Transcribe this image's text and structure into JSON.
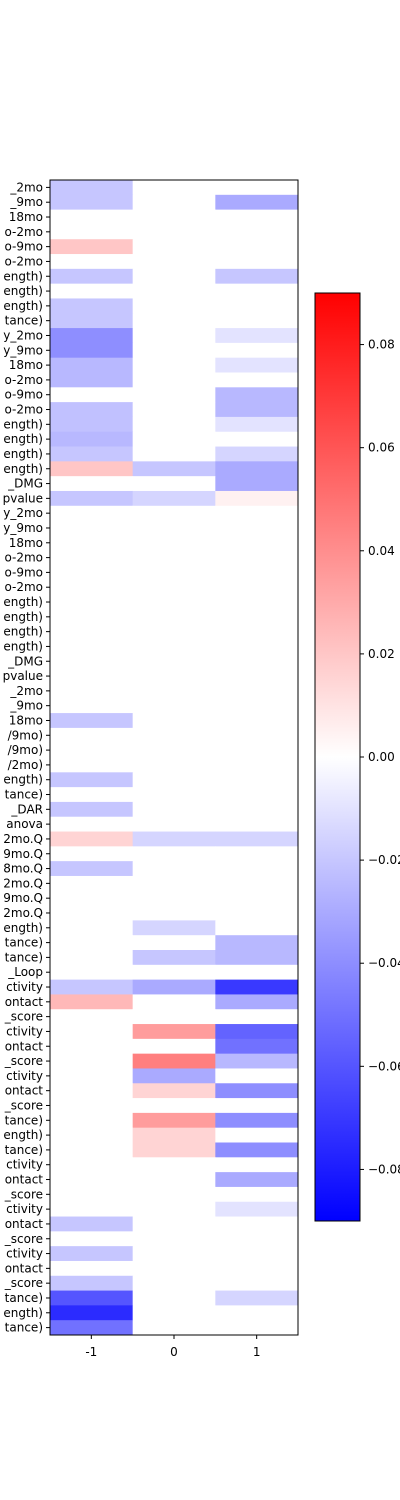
{
  "chart_data": {
    "type": "heatmap",
    "title": "",
    "xlabel": "",
    "ylabel": "",
    "x_categories": [
      "-1",
      "0",
      "1"
    ],
    "y_categories": [
      "_2mo",
      "_9mo",
      "18mo",
      "o-2mo",
      "o-9mo",
      "o-2mo",
      "ength)",
      "ength)",
      "ength)",
      "tance)",
      "y_2mo",
      "y_9mo",
      "18mo",
      "o-2mo",
      "o-9mo",
      "o-2mo",
      "ength)",
      "ength)",
      "ength)",
      "ength)",
      "_DMG",
      "pvalue",
      "y_2mo",
      "y_9mo",
      "18mo",
      "o-2mo",
      "o-9mo",
      "o-2mo",
      "ength)",
      "ength)",
      "ength)",
      "ength)",
      "_DMG",
      "pvalue",
      "_2mo",
      "_9mo",
      "18mo",
      "/9mo)",
      "/9mo)",
      "/2mo)",
      "ength)",
      "tance)",
      "_DAR",
      "anova",
      "2mo.Q",
      "9mo.Q",
      "8mo.Q",
      "2mo.Q",
      "9mo.Q",
      "2mo.Q",
      "ength)",
      "tance)",
      "tance)",
      "_Loop",
      "ctivity",
      "ontact",
      "_score",
      "ctivity",
      "ontact",
      "_score",
      "ctivity",
      "ontact",
      "_score",
      "tance)",
      "ength)",
      "tance)",
      "ctivity",
      "ontact",
      "_score",
      "ctivity",
      "ontact",
      "_score",
      "ctivity",
      "ontact",
      "_score",
      "tance)",
      "ength)",
      "tance)"
    ],
    "values": [
      [
        -0.02,
        0,
        0
      ],
      [
        -0.02,
        0,
        -0.03
      ],
      [
        0,
        0,
        0
      ],
      [
        0,
        0,
        0
      ],
      [
        0.02,
        0,
        0
      ],
      [
        0,
        0,
        0
      ],
      [
        -0.02,
        0,
        -0.02
      ],
      [
        0,
        0,
        0
      ],
      [
        -0.02,
        0,
        0
      ],
      [
        -0.02,
        0,
        0
      ],
      [
        -0.04,
        0,
        -0.01
      ],
      [
        -0.04,
        0,
        0
      ],
      [
        -0.025,
        0,
        -0.01
      ],
      [
        -0.025,
        0,
        0
      ],
      [
        0,
        0,
        -0.025
      ],
      [
        -0.022,
        0,
        -0.025
      ],
      [
        -0.022,
        0,
        -0.01
      ],
      [
        -0.025,
        0,
        0
      ],
      [
        -0.02,
        0,
        -0.015
      ],
      [
        0.02,
        -0.02,
        -0.03
      ],
      [
        0,
        0,
        -0.03
      ],
      [
        -0.02,
        -0.015,
        0.005
      ],
      [
        0,
        0,
        0
      ],
      [
        0,
        0,
        0
      ],
      [
        0,
        0,
        0
      ],
      [
        0,
        0,
        0
      ],
      [
        0,
        0,
        0
      ],
      [
        0,
        0,
        0
      ],
      [
        0,
        0,
        0
      ],
      [
        0,
        0,
        0
      ],
      [
        0,
        0,
        0
      ],
      [
        0,
        0,
        0
      ],
      [
        0,
        0,
        0
      ],
      [
        0,
        0,
        0
      ],
      [
        0,
        0,
        0
      ],
      [
        0,
        0,
        0
      ],
      [
        -0.02,
        0,
        0
      ],
      [
        0,
        0,
        0
      ],
      [
        0,
        0,
        0
      ],
      [
        0,
        0,
        0
      ],
      [
        -0.02,
        0,
        0
      ],
      [
        0,
        0,
        0
      ],
      [
        -0.02,
        0,
        0
      ],
      [
        0,
        0,
        0
      ],
      [
        0.015,
        -0.015,
        -0.015
      ],
      [
        0,
        0,
        0
      ],
      [
        -0.02,
        0,
        0
      ],
      [
        0,
        0,
        0
      ],
      [
        0,
        0,
        0
      ],
      [
        0,
        0,
        0
      ],
      [
        0,
        -0.015,
        0
      ],
      [
        0,
        0,
        -0.025
      ],
      [
        0,
        -0.02,
        -0.025
      ],
      [
        0,
        0,
        0
      ],
      [
        -0.02,
        -0.03,
        -0.07
      ],
      [
        0.025,
        0,
        -0.03
      ],
      [
        0,
        0,
        0
      ],
      [
        0,
        0.035,
        -0.055
      ],
      [
        0,
        0,
        -0.05
      ],
      [
        0,
        0.045,
        -0.025
      ],
      [
        0,
        -0.03,
        0
      ],
      [
        0,
        0.015,
        -0.04
      ],
      [
        0,
        0,
        0
      ],
      [
        0,
        0.035,
        -0.04
      ],
      [
        0,
        0.015,
        0
      ],
      [
        0,
        0.015,
        -0.04
      ],
      [
        0,
        0,
        0
      ],
      [
        0,
        0,
        -0.03
      ],
      [
        0,
        0,
        0
      ],
      [
        0,
        0,
        -0.01
      ],
      [
        -0.02,
        0,
        0
      ],
      [
        0,
        0,
        0
      ],
      [
        -0.02,
        0,
        0
      ],
      [
        0,
        0,
        0
      ],
      [
        -0.02,
        0,
        0
      ],
      [
        -0.06,
        0,
        -0.015
      ],
      [
        -0.075,
        0,
        0
      ],
      [
        -0.05,
        0,
        0
      ]
    ],
    "colorbar": {
      "cmap": "bwr",
      "vmin": -0.09,
      "vmax": 0.09,
      "ticks": [
        0.08,
        0.06,
        0.04,
        0.02,
        0.0,
        -0.02,
        -0.04,
        -0.06,
        -0.08
      ],
      "tick_labels": [
        "0.08",
        "0.06",
        "0.04",
        "0.02",
        "0.00",
        "−0.02",
        "−0.04",
        "−0.06",
        "−0.08"
      ]
    },
    "grid": false,
    "legend": "none"
  }
}
